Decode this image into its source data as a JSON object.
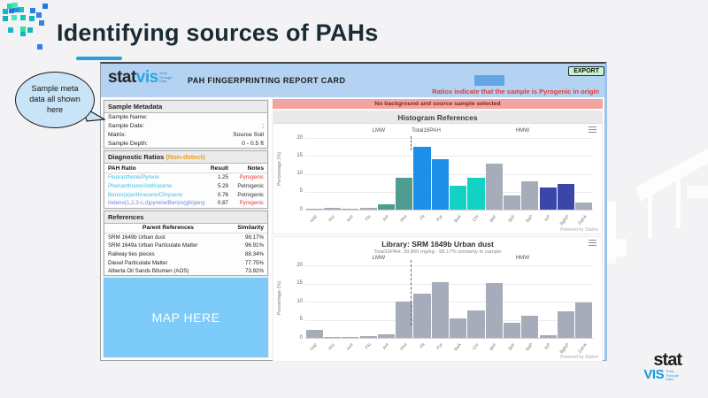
{
  "slide": {
    "title": "Identifying sources of PAHs",
    "bubble_text": "Sample meta data all shown here",
    "accent_underline_color": "#2d9fd8"
  },
  "app": {
    "logo": {
      "stat": "stat",
      "vis": "vis",
      "tagline": "Trust Through Data"
    },
    "header_title": "PAH FINGERPRINTING REPORT CARD",
    "export_label": "EXPORT",
    "legend_note": "Ratios indicate that the sample is Pyrogenic in origin",
    "legend_swatch_color": "#63a6e6",
    "banner": "No background and source sample selected",
    "metadata": {
      "title": "Sample Metadata",
      "rows": [
        {
          "label": "Sample Name:",
          "value": ""
        },
        {
          "label": "Sample Date:",
          "value": ";"
        },
        {
          "label": "Matrix:",
          "value": "Source Soil"
        },
        {
          "label": "Sample Depth:",
          "value": "0 - 0.5 ft"
        }
      ]
    },
    "ratios": {
      "title": "Diagnostic Ratios",
      "title_suffix": "(Non-detect)",
      "col_ratio": "PAH Ratio",
      "col_result": "Result",
      "col_notes": "Notes",
      "note_colors": {
        "Pyrogenic": "#e2403a",
        "Petrogenic": "#333333"
      },
      "rows": [
        {
          "ratio": "Fluoranthene/Pyrene",
          "color": "#3fc1e3",
          "result": "1.25",
          "note": "Pyrogenic"
        },
        {
          "ratio": "Phenanthrene/Anthracene",
          "color": "#3fc1e3",
          "result": "5.29",
          "note": "Petrogenic"
        },
        {
          "ratio": "Benzo(a)anthracene/Chrysene",
          "color": "#3fc1e3",
          "result": "0.76",
          "note": "Petrogenic"
        },
        {
          "ratio": "Indeno(1,2,3-c,d)pyrene/Benzo(ghi)perylene",
          "color": "#6c85e4",
          "result": "0.87",
          "note": "Pyrogenic"
        }
      ]
    },
    "references": {
      "title": "References",
      "col_parent": "Parent References",
      "col_similarity": "Similarity",
      "rows": [
        {
          "name": "SRM 1649b Urban dust",
          "similarity": "98.17%"
        },
        {
          "name": "SRM 1649a Urban Particulate Matter",
          "similarity": "96.91%"
        },
        {
          "name": "Railway ties pieces",
          "similarity": "88.34%"
        },
        {
          "name": "Diesel Particulate Matter",
          "similarity": "77.75%"
        },
        {
          "name": "Alberta Oil Sands Bitumen (AOS)",
          "similarity": "73.92%"
        }
      ]
    },
    "map_placeholder": "MAP HERE",
    "map_color": "#7ccbf8"
  },
  "chart_data": [
    {
      "type": "bar",
      "title": "Histogram References",
      "ylabel": "Percentage (%)",
      "ylim": [
        0,
        20
      ],
      "yticks": [
        0,
        5,
        10,
        15,
        20
      ],
      "grid": true,
      "legend_position": "none",
      "categories": [
        "Nap",
        "Acy",
        "Ace",
        "Flu",
        "Ant",
        "Phe",
        "Flt",
        "Pyr",
        "BaA",
        "Chr",
        "BbF",
        "BkF",
        "BaP",
        "InP",
        "BghiP",
        "DahA"
      ],
      "values": [
        0.2,
        0.5,
        0.2,
        0.5,
        1.6,
        8.8,
        17.5,
        14.1,
        6.7,
        8.9,
        12.9,
        4.0,
        7.9,
        6.2,
        7.1,
        2.0
      ],
      "bar_colors": [
        "#a7acbb",
        "#a7acbb",
        "#a7acbb",
        "#a7acbb",
        "#4e9d90",
        "#4e9d90",
        "#1d8fe8",
        "#1d8fe8",
        "#12d2c3",
        "#12d2c3",
        "#a7acbb",
        "#a7acbb",
        "#a7acbb",
        "#3b47a8",
        "#3b47a8",
        "#a7acbb"
      ],
      "annotations": [
        {
          "label": "LMW",
          "x": 0.255
        },
        {
          "label": "Total16PAH",
          "x": 0.42
        },
        {
          "label": "HMW",
          "x": 0.755
        }
      ],
      "divider": {
        "x": 0.365,
        "top": -2,
        "height": 16
      },
      "powered_by": "Powered by Statvis"
    },
    {
      "type": "bar",
      "title": "Library: SRM 1649b Urban dust",
      "subtitle": "Total16PAH: 39,860 mg/kg  -  98.17% similarity to sample",
      "ylabel": "Percentage (%)",
      "ylim": [
        0,
        20
      ],
      "yticks": [
        0,
        5,
        10,
        15,
        20
      ],
      "grid": true,
      "legend_position": "none",
      "categories": [
        "Nap",
        "Acy",
        "Ace",
        "Flu",
        "Ant",
        "Phe",
        "Flt",
        "Pyr",
        "BaA",
        "Chr",
        "BbF",
        "BkF",
        "BaP",
        "InP",
        "BghiP",
        "DahA"
      ],
      "values": [
        2.2,
        0.3,
        0.3,
        0.5,
        1.0,
        10.0,
        12.2,
        15.4,
        5.3,
        7.6,
        15.2,
        4.2,
        6.1,
        0.7,
        7.2,
        9.8
      ],
      "bar_colors": [
        "#a7acbb",
        "#a7acbb",
        "#a7acbb",
        "#a7acbb",
        "#a7acbb",
        "#a7acbb",
        "#a7acbb",
        "#a7acbb",
        "#a7acbb",
        "#a7acbb",
        "#a7acbb",
        "#a7acbb",
        "#a7acbb",
        "#a7acbb",
        "#a7acbb",
        "#a7acbb"
      ],
      "annotations": [
        {
          "label": "LMW",
          "x": 0.255
        },
        {
          "label": "HMW",
          "x": 0.755
        }
      ],
      "divider": {
        "x": 0.365,
        "top": -6,
        "height": 74
      },
      "powered_by": "Powered by Statvis"
    }
  ],
  "footer_logo": {
    "stat": "stat",
    "vis": "VIS",
    "tagline": "Trust Through Data"
  }
}
